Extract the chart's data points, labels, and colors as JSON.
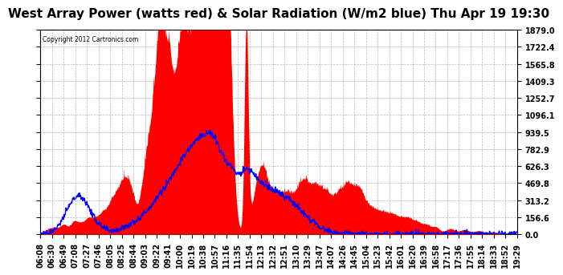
{
  "title": "West Array Power (watts red) & Solar Radiation (W/m2 blue) Thu Apr 19 19:30",
  "copyright": "Copyright 2012 Cartronics.com",
  "yticks": [
    0.0,
    156.6,
    313.2,
    469.8,
    626.3,
    782.9,
    939.5,
    1096.1,
    1252.7,
    1409.3,
    1565.8,
    1722.4,
    1879.0
  ],
  "xtick_labels": [
    "06:08",
    "06:30",
    "06:49",
    "07:08",
    "07:27",
    "07:46",
    "08:05",
    "08:25",
    "08:44",
    "09:03",
    "09:22",
    "09:41",
    "10:00",
    "10:19",
    "10:38",
    "10:57",
    "11:16",
    "11:35",
    "11:54",
    "12:13",
    "12:32",
    "12:51",
    "13:10",
    "13:29",
    "13:47",
    "14:07",
    "14:26",
    "14:45",
    "15:04",
    "15:23",
    "15:42",
    "16:01",
    "16:20",
    "16:39",
    "16:58",
    "17:17",
    "17:36",
    "17:55",
    "18:14",
    "18:33",
    "18:52",
    "19:29"
  ],
  "bg_color": "#ffffff",
  "plot_bg": "#ffffff",
  "grid_color": "#aaaaaa",
  "red_color": "#ff0000",
  "blue_color": "#0000ff",
  "title_fontsize": 11,
  "tick_fontsize": 7,
  "ymax": 1879.0,
  "ymin": 0.0
}
